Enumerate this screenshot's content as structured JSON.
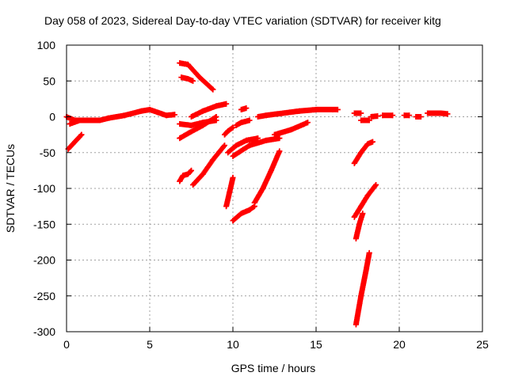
{
  "chart_data": {
    "type": "scatter",
    "title": "Day 058 of 2023, Sidereal Day-to-day VTEC variation (SDTVAR) for receiver kitg",
    "xlabel": "GPS time / hours",
    "ylabel": "SDTVAR / TECUs",
    "xlim": [
      0,
      25
    ],
    "ylim": [
      -300,
      100
    ],
    "xticks": [
      "0",
      "5",
      "10",
      "15",
      "20",
      "25"
    ],
    "yticks": [
      "100",
      "50",
      "0",
      "-50",
      "-100",
      "-150",
      "-200",
      "-250",
      "-300"
    ],
    "grid": true,
    "legend": "none",
    "marker": "plus",
    "color": "#ff0000",
    "tracks": [
      {
        "points": [
          [
            0.0,
            0
          ],
          [
            0.5,
            -5
          ],
          [
            1.0,
            -5
          ],
          [
            1.5,
            -5
          ],
          [
            2.0,
            -5
          ],
          [
            2.5,
            -2
          ],
          [
            3.0,
            0
          ],
          [
            3.5,
            2
          ],
          [
            4.0,
            5
          ],
          [
            4.5,
            8
          ],
          [
            5.0,
            10
          ],
          [
            5.5,
            6
          ],
          [
            6.0,
            2
          ],
          [
            6.5,
            3
          ]
        ]
      },
      {
        "points": [
          [
            0.2,
            -10
          ],
          [
            0.8,
            -5
          ],
          [
            1.2,
            -5
          ]
        ]
      },
      {
        "points": [
          [
            0.1,
            -45
          ],
          [
            0.5,
            -35
          ],
          [
            0.9,
            -25
          ]
        ]
      },
      {
        "points": [
          [
            6.8,
            75
          ],
          [
            7.3,
            73
          ],
          [
            8.0,
            55
          ],
          [
            8.8,
            38
          ]
        ]
      },
      {
        "points": [
          [
            6.9,
            55
          ],
          [
            7.3,
            53
          ],
          [
            7.6,
            50
          ]
        ]
      },
      {
        "points": [
          [
            6.8,
            -10
          ],
          [
            7.5,
            -12
          ],
          [
            8.2,
            -8
          ],
          [
            9.0,
            -5
          ]
        ]
      },
      {
        "points": [
          [
            6.8,
            -30
          ],
          [
            7.4,
            -22
          ],
          [
            8.2,
            -12
          ],
          [
            9.0,
            0
          ]
        ]
      },
      {
        "points": [
          [
            7.5,
            0
          ],
          [
            8.2,
            8
          ],
          [
            9.0,
            15
          ],
          [
            9.6,
            18
          ]
        ]
      },
      {
        "points": [
          [
            6.8,
            -90
          ],
          [
            7.0,
            -82
          ],
          [
            7.3,
            -80
          ],
          [
            7.5,
            -75
          ]
        ]
      },
      {
        "points": [
          [
            7.6,
            -95
          ],
          [
            8.2,
            -80
          ],
          [
            8.8,
            -60
          ],
          [
            9.5,
            -40
          ]
        ]
      },
      {
        "points": [
          [
            9.5,
            -25
          ],
          [
            9.7,
            -20
          ],
          [
            10.0,
            -15
          ]
        ]
      },
      {
        "points": [
          [
            9.6,
            -125
          ],
          [
            9.8,
            -105
          ],
          [
            10.0,
            -85
          ]
        ]
      },
      {
        "points": [
          [
            9.7,
            -50
          ],
          [
            10.2,
            -40
          ],
          [
            10.8,
            -33
          ],
          [
            11.5,
            -30
          ]
        ]
      },
      {
        "points": [
          [
            10.0,
            -55
          ],
          [
            11.0,
            -40
          ],
          [
            12.0,
            -33
          ],
          [
            12.8,
            -30
          ]
        ]
      },
      {
        "points": [
          [
            10.0,
            -145
          ],
          [
            10.5,
            -135
          ],
          [
            11.0,
            -130
          ],
          [
            11.3,
            -125
          ]
        ]
      },
      {
        "points": [
          [
            11.3,
            -120
          ],
          [
            11.8,
            -100
          ],
          [
            12.3,
            -75
          ],
          [
            12.8,
            -48
          ]
        ]
      },
      {
        "points": [
          [
            10.2,
            -12
          ],
          [
            10.5,
            -8
          ],
          [
            11.0,
            -5
          ]
        ]
      },
      {
        "points": [
          [
            10.5,
            10
          ],
          [
            10.8,
            12
          ]
        ]
      },
      {
        "points": [
          [
            12.5,
            -25
          ],
          [
            13.5,
            -18
          ],
          [
            14.5,
            -8
          ]
        ]
      },
      {
        "points": [
          [
            11.5,
            0
          ],
          [
            12.0,
            2
          ],
          [
            13.0,
            5
          ],
          [
            14.0,
            8
          ],
          [
            15.0,
            10
          ],
          [
            16.0,
            10
          ],
          [
            16.3,
            10
          ]
        ]
      },
      {
        "points": [
          [
            17.3,
            5
          ],
          [
            17.7,
            5
          ]
        ]
      },
      {
        "points": [
          [
            17.7,
            -5
          ],
          [
            18.2,
            -5
          ]
        ]
      },
      {
        "points": [
          [
            18.3,
            0
          ],
          [
            18.7,
            1
          ]
        ]
      },
      {
        "points": [
          [
            19.0,
            2
          ],
          [
            19.6,
            2
          ]
        ]
      },
      {
        "points": [
          [
            20.3,
            2
          ],
          [
            20.6,
            2
          ]
        ]
      },
      {
        "points": [
          [
            21.0,
            0
          ],
          [
            21.3,
            0
          ]
        ]
      },
      {
        "points": [
          [
            21.7,
            5
          ],
          [
            22.5,
            5
          ],
          [
            22.9,
            4
          ]
        ]
      },
      {
        "points": [
          [
            17.3,
            -65
          ],
          [
            17.7,
            -50
          ],
          [
            18.1,
            -38
          ],
          [
            18.4,
            -35
          ]
        ]
      },
      {
        "points": [
          [
            17.3,
            -140
          ],
          [
            17.7,
            -125
          ],
          [
            18.1,
            -110
          ],
          [
            18.6,
            -95
          ]
        ]
      },
      {
        "points": [
          [
            17.4,
            -170
          ],
          [
            17.6,
            -150
          ],
          [
            17.8,
            -135
          ]
        ]
      },
      {
        "points": [
          [
            17.4,
            -290
          ],
          [
            17.7,
            -250
          ],
          [
            18.0,
            -215
          ],
          [
            18.2,
            -190
          ]
        ]
      }
    ]
  }
}
